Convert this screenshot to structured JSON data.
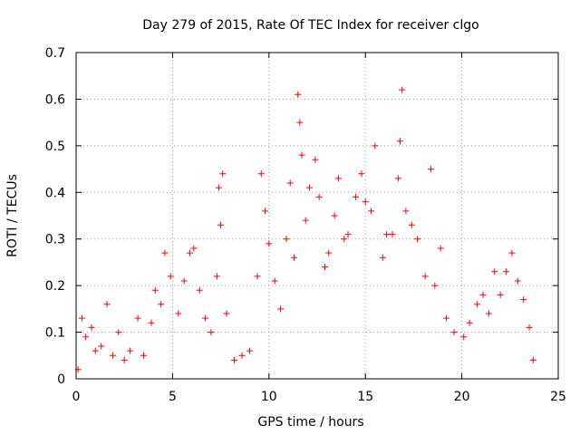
{
  "chart_data": {
    "type": "scatter",
    "title": "Day 279 of 2015, Rate Of TEC Index for receiver clgo",
    "xlabel": "GPS time / hours",
    "ylabel": "ROTI / TECUs",
    "xlim": [
      0,
      25
    ],
    "ylim": [
      0,
      0.7
    ],
    "x_ticks": [
      0,
      5,
      10,
      15,
      20,
      25
    ],
    "x_tick_labels": [
      "0",
      "5",
      "10",
      "15",
      "20",
      "25"
    ],
    "y_ticks": [
      0,
      0.1,
      0.2,
      0.3,
      0.4,
      0.5,
      0.6,
      0.7
    ],
    "y_tick_labels": [
      "0",
      "0.1",
      "0.2",
      "0.3",
      "0.4",
      "0.5",
      "0.6",
      "0.7"
    ],
    "grid": true,
    "marker": "+",
    "color": "#ff0000",
    "series": [
      {
        "name": "ROTI",
        "points": [
          [
            0.1,
            0.02
          ],
          [
            0.3,
            0.13
          ],
          [
            0.5,
            0.09
          ],
          [
            0.8,
            0.11
          ],
          [
            1.0,
            0.06
          ],
          [
            1.3,
            0.07
          ],
          [
            1.6,
            0.16
          ],
          [
            1.9,
            0.05
          ],
          [
            2.2,
            0.1
          ],
          [
            2.5,
            0.04
          ],
          [
            2.8,
            0.06
          ],
          [
            3.2,
            0.13
          ],
          [
            3.5,
            0.05
          ],
          [
            3.9,
            0.12
          ],
          [
            4.1,
            0.19
          ],
          [
            4.4,
            0.16
          ],
          [
            4.6,
            0.27
          ],
          [
            4.9,
            0.22
          ],
          [
            5.3,
            0.14
          ],
          [
            5.6,
            0.21
          ],
          [
            5.9,
            0.27
          ],
          [
            6.1,
            0.28
          ],
          [
            6.4,
            0.19
          ],
          [
            6.7,
            0.13
          ],
          [
            7.0,
            0.1
          ],
          [
            7.3,
            0.22
          ],
          [
            7.4,
            0.41
          ],
          [
            7.5,
            0.33
          ],
          [
            7.6,
            0.44
          ],
          [
            7.8,
            0.14
          ],
          [
            8.2,
            0.04
          ],
          [
            8.6,
            0.05
          ],
          [
            9.0,
            0.06
          ],
          [
            9.4,
            0.22
          ],
          [
            9.6,
            0.44
          ],
          [
            9.8,
            0.36
          ],
          [
            10.0,
            0.29
          ],
          [
            10.3,
            0.21
          ],
          [
            10.6,
            0.15
          ],
          [
            10.9,
            0.3
          ],
          [
            11.1,
            0.42
          ],
          [
            11.3,
            0.26
          ],
          [
            11.5,
            0.61
          ],
          [
            11.6,
            0.55
          ],
          [
            11.7,
            0.48
          ],
          [
            11.9,
            0.34
          ],
          [
            12.1,
            0.41
          ],
          [
            12.4,
            0.47
          ],
          [
            12.6,
            0.39
          ],
          [
            12.9,
            0.24
          ],
          [
            13.1,
            0.27
          ],
          [
            13.4,
            0.35
          ],
          [
            13.6,
            0.43
          ],
          [
            13.9,
            0.3
          ],
          [
            14.1,
            0.31
          ],
          [
            14.5,
            0.39
          ],
          [
            14.8,
            0.44
          ],
          [
            15.0,
            0.38
          ],
          [
            15.3,
            0.36
          ],
          [
            15.5,
            0.5
          ],
          [
            15.9,
            0.26
          ],
          [
            16.1,
            0.31
          ],
          [
            16.4,
            0.31
          ],
          [
            16.7,
            0.43
          ],
          [
            16.8,
            0.51
          ],
          [
            16.9,
            0.62
          ],
          [
            17.1,
            0.36
          ],
          [
            17.4,
            0.33
          ],
          [
            17.7,
            0.3
          ],
          [
            18.1,
            0.22
          ],
          [
            18.4,
            0.45
          ],
          [
            18.6,
            0.2
          ],
          [
            18.9,
            0.28
          ],
          [
            19.2,
            0.13
          ],
          [
            19.6,
            0.1
          ],
          [
            20.1,
            0.09
          ],
          [
            20.4,
            0.12
          ],
          [
            20.8,
            0.16
          ],
          [
            21.1,
            0.18
          ],
          [
            21.4,
            0.14
          ],
          [
            21.7,
            0.23
          ],
          [
            22.0,
            0.18
          ],
          [
            22.3,
            0.23
          ],
          [
            22.6,
            0.27
          ],
          [
            22.9,
            0.21
          ],
          [
            23.2,
            0.17
          ],
          [
            23.5,
            0.11
          ],
          [
            23.7,
            0.04
          ]
        ]
      }
    ]
  }
}
